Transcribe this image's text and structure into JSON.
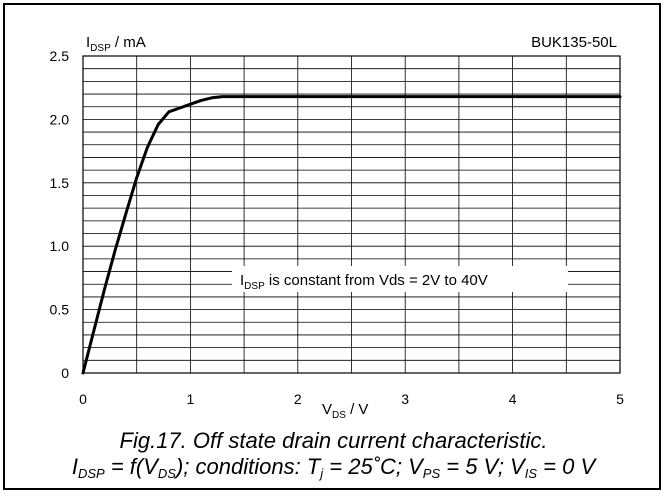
{
  "chart_data": {
    "type": "line",
    "device": "BUK135-50L",
    "ylabel_main": "I",
    "ylabel_sub": "DSP",
    "ylabel_unit": " / mA",
    "xlabel_main": "V",
    "xlabel_sub": "DS",
    "xlabel_unit": " / V",
    "xlim": [
      0,
      5
    ],
    "ylim": [
      0,
      2.5
    ],
    "x_ticks": [
      "0",
      "1",
      "2",
      "3",
      "4",
      "5"
    ],
    "y_ticks": [
      "0",
      "0.5",
      "1.0",
      "1.5",
      "2.0",
      "2.5"
    ],
    "grid": true,
    "annotation_main": "I",
    "annotation_sub": "DSP",
    "annotation_rest": " is constant from Vds = 2V to 40V",
    "series": [
      {
        "x": [
          0,
          0.1,
          0.2,
          0.3,
          0.4,
          0.5,
          0.6,
          0.7,
          0.8,
          0.9,
          1.0,
          1.1,
          1.2,
          1.3,
          1.4,
          1.6,
          2.0,
          3.0,
          4.0,
          5.0
        ],
        "y": [
          0,
          0.33,
          0.66,
          0.97,
          1.26,
          1.54,
          1.78,
          1.96,
          2.06,
          2.09,
          2.12,
          2.15,
          2.17,
          2.18,
          2.18,
          2.18,
          2.18,
          2.18,
          2.18,
          2.18
        ]
      }
    ]
  },
  "caption": {
    "line1": "Fig.17.   Off state drain current characteristic.",
    "l2_i": "I",
    "l2_i_sub": "DSP",
    "l2_eq": " = f(V",
    "l2_v_sub": "DS",
    "l2_cond": "); conditions: T",
    "l2_t_sub": "j",
    "l2_temp": " = 25˚C; V",
    "l2_ps_sub": "PS",
    "l2_ps": " = 5 V; V",
    "l2_is_sub": "IS",
    "l2_is": " = 0 V"
  }
}
